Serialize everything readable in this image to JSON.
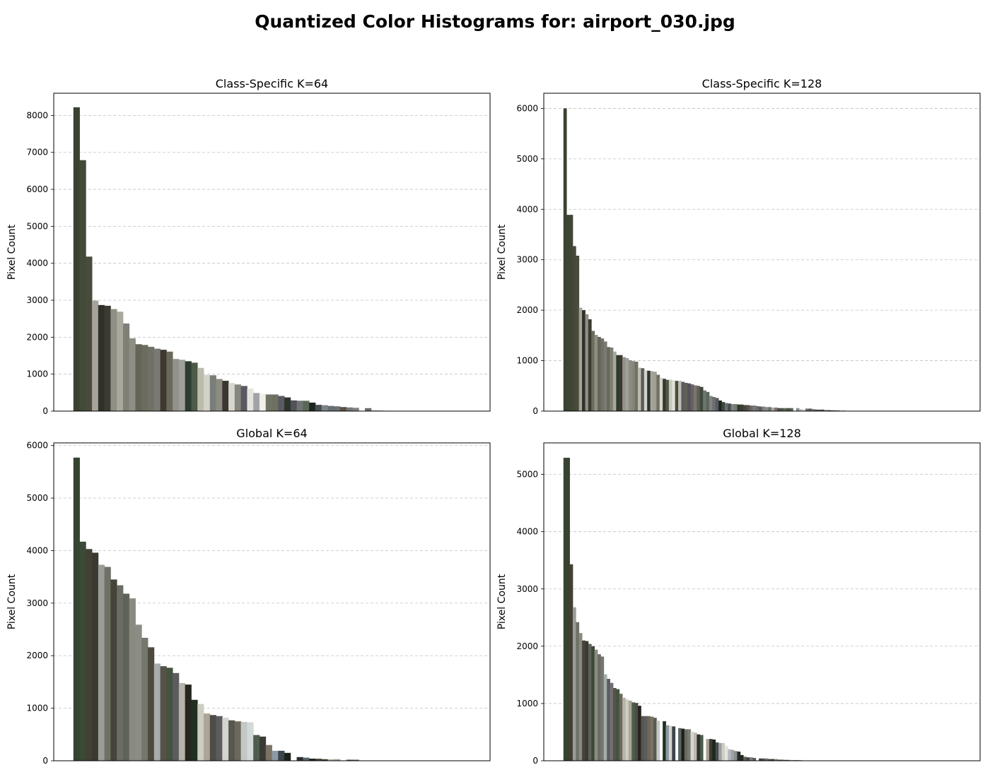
{
  "figure": {
    "title": "Quantized Color Histograms for: airport_030.jpg"
  },
  "chart_data": [
    {
      "type": "bar",
      "title": "Class-Specific K=64",
      "xlabel": "",
      "ylabel": "Pixel Count",
      "ylim": [
        0,
        8600
      ],
      "yticks": [
        0,
        1000,
        2000,
        3000,
        4000,
        5000,
        6000,
        7000,
        8000
      ],
      "grid": "y-dashed",
      "values": [
        8220,
        6790,
        4180,
        2990,
        2870,
        2850,
        2760,
        2690,
        2370,
        1970,
        1810,
        1790,
        1740,
        1690,
        1660,
        1610,
        1410,
        1390,
        1350,
        1310,
        1170,
        980,
        970,
        870,
        820,
        760,
        720,
        680,
        610,
        490,
        470,
        450,
        450,
        410,
        370,
        290,
        280,
        280,
        230,
        170,
        160,
        140,
        130,
        110,
        100,
        90,
        0,
        80,
        20,
        15,
        10,
        0,
        0,
        0,
        0,
        0,
        0,
        0,
        0,
        0,
        0,
        0,
        0,
        0
      ],
      "colors": [
        "#3a4232",
        "#424a38",
        "#4a4b3c",
        "#a6a499",
        "#30302a",
        "#3b3b32",
        "#8f8f85",
        "#a8a89c",
        "#7f7f78",
        "#8e8e83",
        "#646458",
        "#6c6c5e",
        "#707066",
        "#7a7a74",
        "#3e3830",
        "#6a6a5a",
        "#92928a",
        "#a0a09a",
        "#2c3c2e",
        "#4e5a48",
        "#bcbcac",
        "#d2d2c8",
        "#7a7e7a",
        "#8e8c80",
        "#3c3630",
        "#d6d6cc",
        "#86867c",
        "#585a60",
        "#e4e4dc",
        "#a0a4a8",
        "#f0f0e8",
        "#707264",
        "#6e7064",
        "#5a5a60",
        "#2c342c",
        "#525258",
        "#6e7474",
        "#5a6858",
        "#1e2620",
        "#484e4e",
        "#7c8488",
        "#667070",
        "#6c7274",
        "#5a504a",
        "#7a7876",
        "#828282",
        "#ffffff",
        "#6a6a72",
        "#a8a8a0",
        "#8a8a80",
        "#5a5a5a",
        "#ffffff",
        "#ffffff",
        "#ffffff",
        "#ffffff",
        "#ffffff",
        "#ffffff",
        "#ffffff",
        "#ffffff",
        "#ffffff",
        "#ffffff",
        "#ffffff",
        "#ffffff",
        "#ffffff"
      ]
    },
    {
      "type": "bar",
      "title": "Class-Specific K=128",
      "xlabel": "",
      "ylabel": "Pixel Count",
      "ylim": [
        0,
        6300
      ],
      "yticks": [
        0,
        1000,
        2000,
        3000,
        4000,
        5000,
        6000
      ],
      "grid": "y-dashed",
      "values": [
        6000,
        3890,
        3890,
        3270,
        3080,
        2050,
        2000,
        1920,
        1820,
        1590,
        1510,
        1470,
        1440,
        1380,
        1270,
        1260,
        1180,
        1110,
        1110,
        1070,
        1050,
        1010,
        990,
        980,
        860,
        850,
        810,
        800,
        790,
        780,
        720,
        660,
        640,
        620,
        620,
        610,
        600,
        600,
        580,
        560,
        550,
        530,
        510,
        500,
        480,
        410,
        380,
        300,
        280,
        260,
        210,
        180,
        160,
        150,
        140,
        140,
        130,
        130,
        120,
        120,
        110,
        110,
        100,
        90,
        90,
        80,
        80,
        70,
        70,
        60,
        60,
        60,
        60,
        60,
        0,
        60,
        40,
        30,
        50,
        50,
        40,
        30,
        30,
        30,
        20,
        20,
        15,
        15,
        15,
        10,
        10,
        0,
        0,
        0,
        0,
        0,
        0,
        0,
        0,
        0,
        0,
        0,
        0,
        0,
        0,
        0,
        0,
        0,
        0,
        0,
        0,
        0,
        0,
        0,
        0,
        0,
        0,
        0,
        0,
        0,
        0,
        0,
        0,
        0,
        0,
        0,
        0,
        0
      ],
      "colors": [
        "#3a4232",
        "#3c4434",
        "#404636",
        "#46493a",
        "#4a4b3c",
        "#a6a499",
        "#30302a",
        "#8f8f85",
        "#3b3b32",
        "#6c6c5e",
        "#8e8e83",
        "#646458",
        "#707066",
        "#7a7a74",
        "#6a6a5a",
        "#7f7f78",
        "#a8a89c",
        "#2c3c2e",
        "#3e3830",
        "#92928a",
        "#a0a09a",
        "#8e8c80",
        "#86867c",
        "#707264",
        "#bcbcac",
        "#585a60",
        "#d2d2c8",
        "#2c342c",
        "#a6a49a",
        "#a0a090",
        "#6e7064",
        "#d6d6cc",
        "#3c3630",
        "#4e5a48",
        "#c8c8bc",
        "#e0e0d6",
        "#4a4a40",
        "#bcbcb0",
        "#5a5a60",
        "#606056",
        "#525258",
        "#6a6060",
        "#787470",
        "#5e5e56",
        "#3e4a3c",
        "#6e7474",
        "#5a6858",
        "#828286",
        "#6e6e6e",
        "#5a5a62",
        "#1e2620",
        "#3c4a3a",
        "#667070",
        "#4a4a4a",
        "#7c8488",
        "#7a7a70",
        "#2c3c2e",
        "#384030",
        "#4a4446",
        "#5a504a",
        "#5e6c62",
        "#7a7876",
        "#6a6a72",
        "#5a5a5a",
        "#828282",
        "#8a8a80",
        "#6c7274",
        "#a8a8a0",
        "#7e7468",
        "#464e48",
        "#525a4c",
        "#606858",
        "#4c524c",
        "#5a625a",
        "#ffffff",
        "#8c9090",
        "#c4c4bc",
        "#dcdcd2",
        "#6e6e70",
        "#5c5c5e",
        "#74706a",
        "#4e4e4e",
        "#5c5c54",
        "#484848",
        "#6a6a64",
        "#545454",
        "#3c3c3c",
        "#646464",
        "#787878",
        "#8a8a8a",
        "#5e5e5e",
        "#ffffff",
        "#ffffff",
        "#ffffff",
        "#ffffff",
        "#ffffff",
        "#ffffff",
        "#ffffff",
        "#ffffff",
        "#ffffff",
        "#ffffff",
        "#ffffff",
        "#ffffff",
        "#ffffff",
        "#ffffff",
        "#ffffff",
        "#ffffff",
        "#ffffff",
        "#ffffff",
        "#ffffff",
        "#ffffff",
        "#ffffff",
        "#ffffff",
        "#ffffff",
        "#ffffff",
        "#ffffff",
        "#ffffff",
        "#ffffff",
        "#ffffff",
        "#ffffff",
        "#ffffff",
        "#ffffff",
        "#ffffff",
        "#ffffff",
        "#ffffff",
        "#ffffff",
        "#ffffff",
        "#ffffff"
      ]
    },
    {
      "type": "bar",
      "title": "Global K=64",
      "xlabel": "",
      "ylabel": "Pixel Count",
      "ylim": [
        0,
        6050
      ],
      "yticks": [
        0,
        1000,
        2000,
        3000,
        4000,
        5000,
        6000
      ],
      "grid": "y-dashed",
      "values": [
        5770,
        4170,
        4030,
        3960,
        3730,
        3690,
        3450,
        3340,
        3180,
        3090,
        2590,
        2340,
        2160,
        1850,
        1800,
        1770,
        1670,
        1480,
        1450,
        1160,
        1080,
        900,
        870,
        850,
        820,
        770,
        750,
        740,
        730,
        490,
        460,
        300,
        190,
        190,
        150,
        0,
        70,
        60,
        40,
        40,
        30,
        30,
        30,
        0,
        20,
        20,
        0,
        0,
        0,
        0,
        0,
        0,
        0,
        0,
        0,
        0,
        0,
        0,
        0,
        0,
        0,
        0,
        0,
        0
      ],
      "colors": [
        "#354430",
        "#3a4a36",
        "#433f33",
        "#3b3a30",
        "#9a9d97",
        "#6e7165",
        "#46443a",
        "#6a6d64",
        "#5e6258",
        "#8a8b80",
        "#8c8c84",
        "#74786c",
        "#4c4a40",
        "#a7adad",
        "#56524a",
        "#43533e",
        "#5c5c60",
        "#b7b3a9",
        "#26261f",
        "#223022",
        "#cdcdc2",
        "#ada597",
        "#4e4c48",
        "#5a5c5e",
        "#d5d5d0",
        "#58564e",
        "#6b695b",
        "#c3c8c4",
        "#d3d8d8",
        "#4e5e4e",
        "#3a3a36",
        "#7b7263",
        "#8d99a4",
        "#3c444c",
        "#1a2219",
        "#ffffff",
        "#2c2e30",
        "#5a6466",
        "#1e261e",
        "#4a4e44",
        "#3a4034",
        "#c0b8a8",
        "#a8a090",
        "#ffffff",
        "#4a4a4a",
        "#5e5e5e",
        "#ffffff",
        "#ffffff",
        "#ffffff",
        "#ffffff",
        "#ffffff",
        "#ffffff",
        "#ffffff",
        "#ffffff",
        "#ffffff",
        "#ffffff",
        "#ffffff",
        "#ffffff",
        "#ffffff",
        "#ffffff",
        "#ffffff",
        "#ffffff",
        "#ffffff",
        "#ffffff"
      ]
    },
    {
      "type": "bar",
      "title": "Global K=128",
      "xlabel": "",
      "ylabel": "Pixel Count",
      "ylim": [
        0,
        5550
      ],
      "yticks": [
        0,
        1000,
        2000,
        3000,
        4000,
        5000
      ],
      "grid": "y-dashed",
      "values": [
        5290,
        5290,
        3430,
        2680,
        2420,
        2230,
        2100,
        2090,
        2040,
        2000,
        1940,
        1860,
        1820,
        1510,
        1430,
        1360,
        1270,
        1250,
        1170,
        1100,
        1070,
        1050,
        1020,
        1010,
        960,
        780,
        780,
        780,
        770,
        750,
        700,
        0,
        690,
        620,
        610,
        600,
        0,
        570,
        560,
        550,
        550,
        510,
        490,
        460,
        450,
        0,
        380,
        380,
        370,
        320,
        310,
        310,
        260,
        200,
        190,
        170,
        160,
        100,
        70,
        60,
        60,
        50,
        0,
        40,
        40,
        40,
        30,
        30,
        30,
        20,
        20,
        15,
        15,
        10,
        10,
        10,
        10,
        5,
        0,
        0,
        0,
        0,
        0,
        0,
        0,
        0,
        0,
        0,
        0,
        0,
        0,
        0,
        0,
        0,
        0,
        0,
        0,
        0,
        0,
        0,
        0,
        0,
        0,
        0,
        0,
        0,
        0,
        0,
        0,
        0,
        0,
        0,
        0,
        0,
        0,
        0,
        0,
        0,
        0,
        0,
        0,
        0,
        0,
        0,
        0,
        0,
        0,
        0
      ],
      "colors": [
        "#354430",
        "#364230",
        "#433f33",
        "#9a9d97",
        "#6e7165",
        "#8a8b80",
        "#46443a",
        "#3b3a30",
        "#5e6258",
        "#3a4a36",
        "#8c8c84",
        "#6a6d64",
        "#74786c",
        "#a7adad",
        "#5c5c60",
        "#707074",
        "#56524a",
        "#43533e",
        "#6b695b",
        "#b7b3a9",
        "#cdcdc2",
        "#ada597",
        "#4e5e4e",
        "#4e4c48",
        "#26261f",
        "#58564e",
        "#5a5c5e",
        "#6b695b",
        "#7b7263",
        "#5a5a52",
        "#c3c8c4",
        "#ffffff",
        "#223022",
        "#8d99a4",
        "#d5d5d0",
        "#3c444c",
        "#ffffff",
        "#5a6466",
        "#1a2219",
        "#6a6a62",
        "#7a7a70",
        "#d3d8d8",
        "#c0b8a8",
        "#2c2e30",
        "#4a5a48",
        "#ffffff",
        "#a8a090",
        "#3a3a36",
        "#1e261e",
        "#4a4a4a",
        "#9aa0a0",
        "#cdcdc4",
        "#e4e4dc",
        "#b0b8c0",
        "#a4a0a0",
        "#868e96",
        "#2a2a24",
        "#1e2a20",
        "#5e5e5e",
        "#46443a",
        "#787c80",
        "#5a5c5a",
        "#ffffff",
        "#3c3c3c",
        "#50505a",
        "#6e7266",
        "#4a4e44",
        "#3a4034",
        "#8a8a80",
        "#5c5c54",
        "#6a6a64",
        "#545454",
        "#646464",
        "#787878",
        "#4e4e4e",
        "#3c3c3c",
        "#8a8a8a",
        "#5e5e5e",
        "#ffffff",
        "#ffffff",
        "#ffffff",
        "#ffffff",
        "#ffffff",
        "#ffffff",
        "#ffffff",
        "#ffffff",
        "#ffffff",
        "#ffffff",
        "#ffffff",
        "#ffffff",
        "#ffffff",
        "#ffffff",
        "#ffffff",
        "#ffffff",
        "#ffffff",
        "#ffffff",
        "#ffffff",
        "#ffffff",
        "#ffffff",
        "#ffffff",
        "#ffffff",
        "#ffffff",
        "#ffffff",
        "#ffffff",
        "#ffffff",
        "#ffffff",
        "#ffffff",
        "#ffffff",
        "#ffffff",
        "#ffffff",
        "#ffffff",
        "#ffffff",
        "#ffffff",
        "#ffffff",
        "#ffffff",
        "#ffffff",
        "#ffffff",
        "#ffffff",
        "#ffffff",
        "#ffffff",
        "#ffffff",
        "#ffffff",
        "#ffffff",
        "#ffffff",
        "#ffffff",
        "#ffffff",
        "#ffffff",
        "#ffffff"
      ]
    }
  ]
}
